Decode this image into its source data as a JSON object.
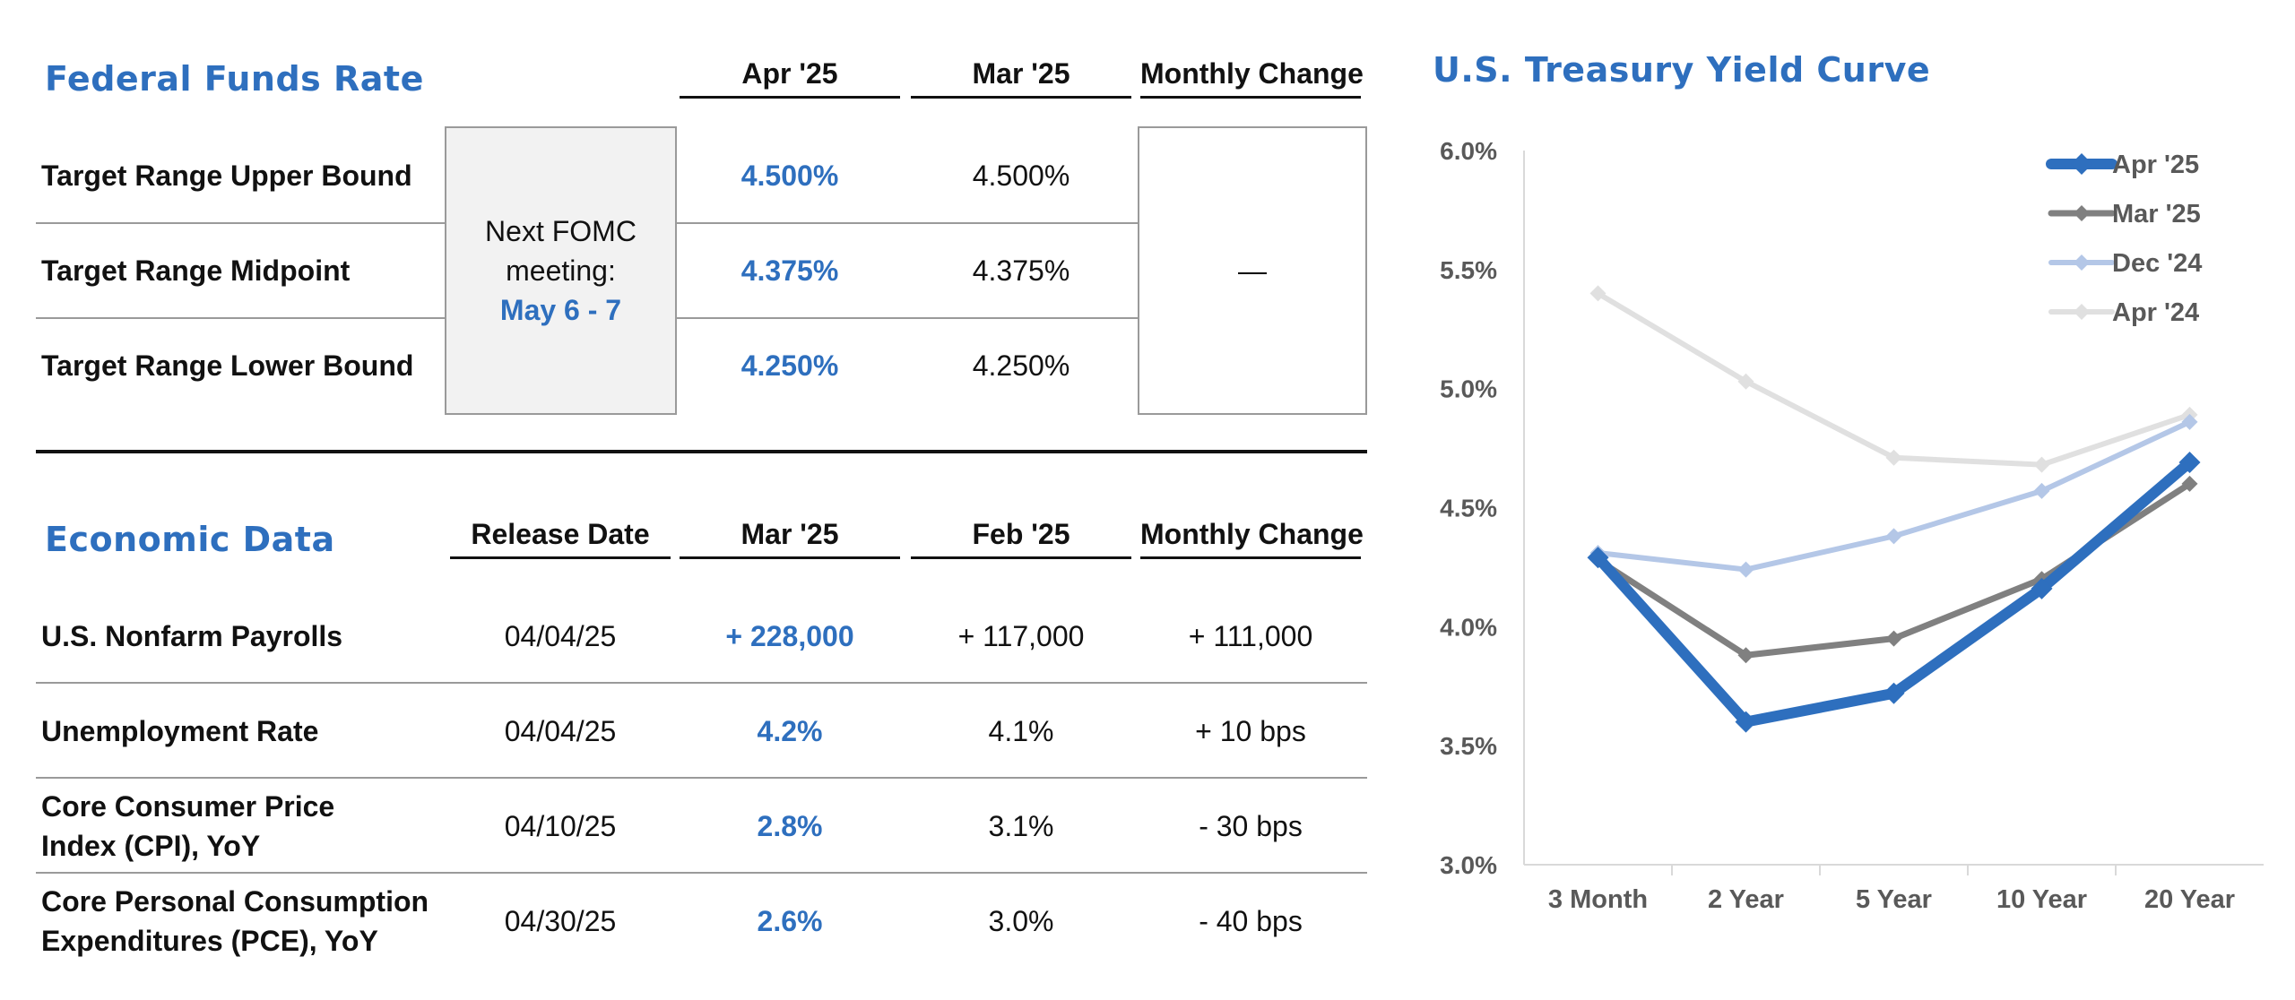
{
  "fed_funds": {
    "title": "Federal Funds Rate",
    "col_current": "Apr '25",
    "col_prior": "Mar '25",
    "col_change": "Monthly Change",
    "fomc_line1": "Next FOMC",
    "fomc_line2": "meeting:",
    "fomc_date": "May 6 - 7",
    "change_value": "—",
    "rows": [
      {
        "label": "Target Range Upper Bound",
        "current": "4.500%",
        "prior": "4.500%"
      },
      {
        "label": "Target Range Midpoint",
        "current": "4.375%",
        "prior": "4.375%"
      },
      {
        "label": "Target Range Lower Bound",
        "current": "4.250%",
        "prior": "4.250%"
      }
    ]
  },
  "economic": {
    "title": "Economic Data",
    "col_release": "Release Date",
    "col_current": "Mar '25",
    "col_prior": "Feb '25",
    "col_change": "Monthly Change",
    "rows": [
      {
        "label_line1": "U.S. Nonfarm Payrolls",
        "label_line2": "",
        "release": "04/04/25",
        "current": "+ 228,000",
        "prior": "+ 117,000",
        "change": "+ 111,000"
      },
      {
        "label_line1": "Unemployment Rate",
        "label_line2": "",
        "release": "04/04/25",
        "current": "4.2%",
        "prior": "4.1%",
        "change": "+ 10 bps"
      },
      {
        "label_line1": "Core Consumer Price",
        "label_line2": "Index (CPI), YoY",
        "release": "04/10/25",
        "current": "2.8%",
        "prior": "3.1%",
        "change": "- 30 bps"
      },
      {
        "label_line1": "Core Personal Consumption",
        "label_line2": "Expenditures (PCE), YoY",
        "release": "04/30/25",
        "current": "2.6%",
        "prior": "3.0%",
        "change": "- 40 bps"
      }
    ]
  },
  "chart_data": {
    "type": "line",
    "title": "U.S. Treasury Yield Curve",
    "xlabel": "",
    "ylabel": "",
    "categories": [
      "3 Month",
      "2 Year",
      "5 Year",
      "10 Year",
      "20 Year"
    ],
    "ylim": [
      3.0,
      6.0
    ],
    "yticks": [
      "3.0%",
      "3.5%",
      "4.0%",
      "4.5%",
      "5.0%",
      "5.5%",
      "6.0%"
    ],
    "grid": false,
    "legend": "top-right",
    "series": [
      {
        "name": "Apr '25",
        "color": "#2e6fbe",
        "values": [
          4.29,
          3.6,
          3.72,
          4.16,
          4.69
        ]
      },
      {
        "name": "Mar '25",
        "color": "#808080",
        "values": [
          4.28,
          3.88,
          3.95,
          4.2,
          4.6
        ]
      },
      {
        "name": "Dec '24",
        "color": "#b4c7e7",
        "values": [
          4.31,
          4.24,
          4.38,
          4.57,
          4.86
        ]
      },
      {
        "name": "Apr '24",
        "color": "#e0e0e0",
        "values": [
          5.4,
          5.03,
          4.71,
          4.68,
          4.89
        ]
      }
    ]
  }
}
